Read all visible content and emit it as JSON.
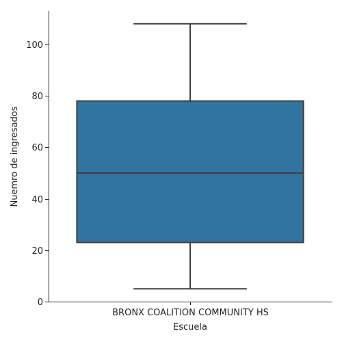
{
  "chart_data": {
    "type": "box",
    "title": "",
    "xlabel": "Escuela",
    "ylabel": "Nuemro de ingresados",
    "categories": [
      "BRONX COALITION COMMUNITY HS"
    ],
    "boxes": [
      {
        "category": "BRONX COALITION COMMUNITY HS",
        "whisker_low": 5,
        "q1": 23,
        "median": 50,
        "q3": 78,
        "whisker_high": 108
      }
    ],
    "ylim": [
      0,
      113
    ],
    "yticks": [
      0,
      20,
      40,
      60,
      80,
      100
    ],
    "grid": false,
    "box_color": "#3274a1",
    "line_color": "#3f3f3f"
  }
}
